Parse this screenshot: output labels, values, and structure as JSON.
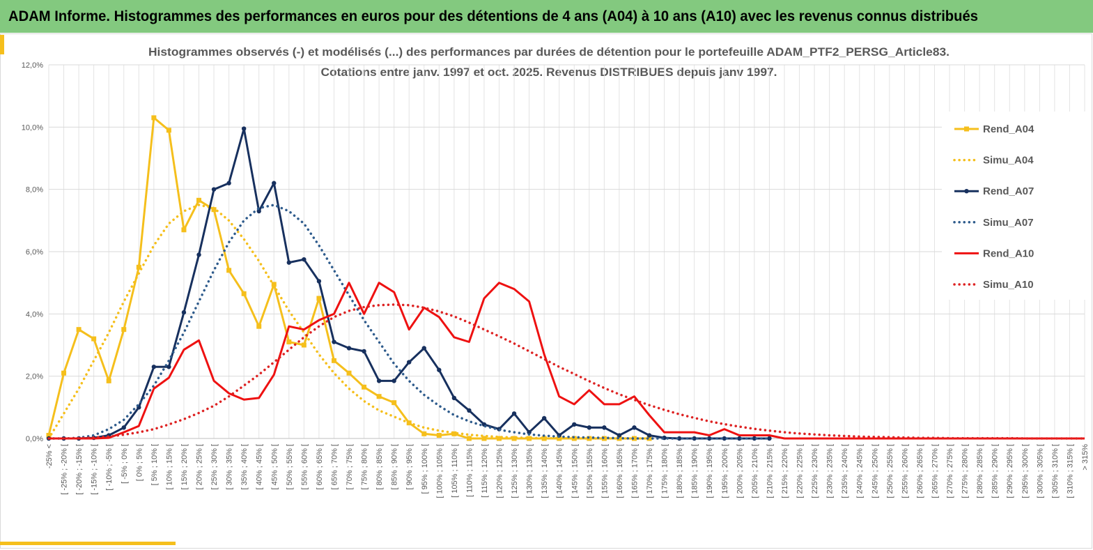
{
  "header": {
    "title": "ADAM Informe. Histogrammes des performances en euros pour des détentions de 4 ans (A04) à 10 ans (A10) avec les revenus connus distribués"
  },
  "chart_data": {
    "type": "line",
    "title": "Histogrammes observés (-) et modélisés (...) des performances par durées de détention pour le portefeuille ADAM_PTF2_PERSG_Article83.",
    "subtitle": "Cotations entre janv. 1997 et oct. 2025. Revenus DISTRIBUES depuis janv 1997.",
    "categories": [
      "-25% <",
      "[ -25% ; -20% [",
      "[ -20% ; -15% [",
      "[ -15% ; -10% [",
      "[ -10% ; -5% [",
      "[ -5% ; 0% [",
      "[ 0% ; 5% [",
      "[ 5% ; 10% [",
      "[ 10% ; 15% [",
      "[ 15% ; 20% [",
      "[ 20% ; 25% [",
      "[ 25% ; 30% [",
      "[ 30% ; 35% [",
      "[ 35% ; 40% [",
      "[ 40% ; 45% [",
      "[ 45% ; 50% [",
      "[ 50% ; 55% [",
      "[ 55% ; 60% [",
      "[ 60% ; 65% [",
      "[ 65% ; 70% [",
      "[ 70% ; 75% [",
      "[ 75% ; 80% [",
      "[ 80% ; 85% [",
      "[ 85% ; 90% [",
      "[ 90% ; 95% [",
      "[ 95% ; 100% [",
      "[ 100% ; 105% [",
      "[ 105% ; 110% [",
      "[ 110% ; 115% [",
      "[ 115% ; 120% [",
      "[ 120% ; 125% [",
      "[ 125% ; 130% [",
      "[ 130% ; 135% [",
      "[ 135% ; 140% [",
      "[ 140% ; 145% [",
      "[ 145% ; 150% [",
      "[ 150% ; 155% [",
      "[ 155% ; 160% [",
      "[ 160% ; 165% [",
      "[ 165% ; 170% [",
      "[ 170% ; 175% [",
      "[ 175% ; 180% [",
      "[ 180% ; 185% [",
      "[ 185% ; 190% [",
      "[ 190% ; 195% [",
      "[ 195% ; 200% [",
      "[ 200% ; 205% [",
      "[ 205% ; 210% [",
      "[ 210% ; 215% [",
      "[ 215% ; 220% [",
      "[ 220% ; 225% [",
      "[ 225% ; 230% [",
      "[ 230% ; 235% [",
      "[ 235% ; 240% [",
      "[ 240% ; 245% [",
      "[ 245% ; 250% [",
      "[ 250% ; 255% [",
      "[ 255% ; 260% [",
      "[ 260% ; 265% [",
      "[ 265% ; 270% [",
      "[ 270% ; 275% [",
      "[ 275% ; 280% [",
      "[ 280% ; 285% [",
      "[ 285% ; 290% [",
      "[ 290% ; 295% [",
      "[ 295% ; 300% [",
      "[ 300% ; 305% [",
      "[ 305% ; 310% [",
      "[ 310% ; 315% [",
      "> 315%"
    ],
    "series": [
      {
        "name": "Rend_A04",
        "color": "#f5bf1c",
        "style": "solid",
        "marker": "square",
        "values": [
          0.1,
          2.1,
          3.5,
          3.2,
          1.85,
          3.5,
          5.5,
          10.3,
          9.9,
          6.7,
          7.65,
          7.35,
          5.4,
          4.65,
          3.6,
          4.95,
          3.1,
          3.0,
          4.5,
          2.5,
          2.1,
          1.65,
          1.35,
          1.15,
          0.5,
          0.15,
          0.1,
          0.15,
          0,
          0,
          0,
          0,
          0,
          0,
          0,
          0,
          0,
          0,
          0,
          0,
          0,
          null,
          null,
          null,
          null,
          null,
          null,
          null,
          null,
          null,
          null,
          null,
          null,
          null,
          null,
          null,
          null,
          null,
          null,
          null,
          null,
          null,
          null,
          null,
          null,
          null,
          null,
          null,
          null,
          null
        ]
      },
      {
        "name": "Simu_A04",
        "color": "#f5bf1c",
        "style": "dotted",
        "values": [
          0,
          0.8,
          1.6,
          2.5,
          3.4,
          4.4,
          5.3,
          6.2,
          6.9,
          7.3,
          7.5,
          7.4,
          7.0,
          6.4,
          5.7,
          4.9,
          4.1,
          3.4,
          2.7,
          2.1,
          1.6,
          1.2,
          0.9,
          0.7,
          0.5,
          0.35,
          0.25,
          0.18,
          0.12,
          0.08,
          0.05,
          0.03,
          0.02,
          0.01,
          0.01,
          0,
          0,
          0,
          0,
          0,
          0,
          null,
          null,
          null,
          null,
          null,
          null,
          null,
          null,
          null,
          null,
          null,
          null,
          null,
          null,
          null,
          null,
          null,
          null,
          null,
          null,
          null,
          null,
          null,
          null,
          null,
          null,
          null,
          null,
          null
        ]
      },
      {
        "name": "Rend_A07",
        "color": "#17305e",
        "style": "solid",
        "marker": "circle",
        "values": [
          0,
          0,
          0,
          0.02,
          0.1,
          0.35,
          1.0,
          2.3,
          2.3,
          4.05,
          5.9,
          8.0,
          8.2,
          9.95,
          7.3,
          8.2,
          5.65,
          5.75,
          5.05,
          3.1,
          2.9,
          2.8,
          1.85,
          1.85,
          2.45,
          2.9,
          2.2,
          1.3,
          0.9,
          0.45,
          0.3,
          0.8,
          0.2,
          0.65,
          0.1,
          0.45,
          0.35,
          0.35,
          0.1,
          0.35,
          0.1,
          0.02,
          0,
          0,
          0,
          0,
          0,
          0,
          0,
          null,
          null,
          null,
          null,
          null,
          null,
          null,
          null,
          null,
          null,
          null,
          null,
          null,
          null,
          null,
          null,
          null,
          null,
          null,
          null,
          null
        ]
      },
      {
        "name": "Simu_A07",
        "color": "#2e5b8c",
        "style": "dotted",
        "values": [
          0,
          0,
          0.02,
          0.1,
          0.3,
          0.6,
          1.1,
          1.7,
          2.5,
          3.4,
          4.4,
          5.4,
          6.3,
          7.0,
          7.4,
          7.5,
          7.3,
          6.9,
          6.2,
          5.4,
          4.6,
          3.8,
          3.1,
          2.4,
          1.85,
          1.4,
          1.05,
          0.75,
          0.55,
          0.4,
          0.28,
          0.2,
          0.13,
          0.09,
          0.06,
          0.04,
          0.03,
          0.02,
          0.01,
          0,
          0,
          0,
          0,
          0,
          0,
          0,
          0,
          0,
          0,
          null,
          null,
          null,
          null,
          null,
          null,
          null,
          null,
          null,
          null,
          null,
          null,
          null,
          null,
          null,
          null,
          null,
          null,
          null,
          null,
          null
        ]
      },
      {
        "name": "Rend_A10",
        "color": "#ee1111",
        "style": "solid",
        "values": [
          0,
          0,
          0,
          0,
          0.02,
          0.2,
          0.4,
          1.6,
          1.95,
          2.85,
          3.15,
          1.85,
          1.45,
          1.25,
          1.3,
          2.05,
          3.6,
          3.5,
          3.8,
          4.0,
          5.0,
          4.0,
          5.0,
          4.7,
          3.5,
          4.2,
          3.9,
          3.25,
          3.1,
          4.5,
          5.0,
          4.8,
          4.4,
          2.7,
          1.35,
          1.1,
          1.55,
          1.1,
          1.1,
          1.35,
          0.75,
          0.2,
          0.2,
          0.2,
          0.1,
          0.3,
          0.1,
          0.1,
          0.1,
          0,
          0,
          0,
          0,
          0,
          0,
          0,
          0,
          0,
          0,
          0,
          0,
          0,
          0,
          0,
          0,
          0,
          0,
          0,
          0,
          0
        ]
      },
      {
        "name": "Simu_A10",
        "color": "#dd2222",
        "style": "dotted",
        "values": [
          0,
          0,
          0.01,
          0.03,
          0.06,
          0.12,
          0.2,
          0.3,
          0.45,
          0.62,
          0.82,
          1.05,
          1.35,
          1.7,
          2.05,
          2.45,
          2.85,
          3.25,
          3.6,
          3.9,
          4.1,
          4.22,
          4.28,
          4.3,
          4.28,
          4.2,
          4.08,
          3.92,
          3.72,
          3.5,
          3.28,
          3.05,
          2.8,
          2.55,
          2.3,
          2.07,
          1.84,
          1.62,
          1.42,
          1.24,
          1.07,
          0.92,
          0.78,
          0.66,
          0.55,
          0.46,
          0.38,
          0.31,
          0.25,
          0.2,
          0.16,
          0.13,
          0.1,
          0.08,
          0.06,
          0.05,
          0.04,
          0.03,
          0.02,
          0.02,
          0.01,
          0.01,
          0.01,
          0.01,
          0.01,
          0,
          0,
          0,
          0,
          0
        ]
      }
    ],
    "ylim": [
      0,
      12
    ],
    "yticks": [
      {
        "value": 0,
        "label": "0,0%"
      },
      {
        "value": 2,
        "label": "2,0%"
      },
      {
        "value": 4,
        "label": "4,0%"
      },
      {
        "value": 6,
        "label": "6,0%"
      },
      {
        "value": 8,
        "label": "8,0%"
      },
      {
        "value": 10,
        "label": "10,0%"
      },
      {
        "value": 12,
        "label": "12,0%"
      }
    ],
    "grid": true,
    "legend": "right"
  }
}
